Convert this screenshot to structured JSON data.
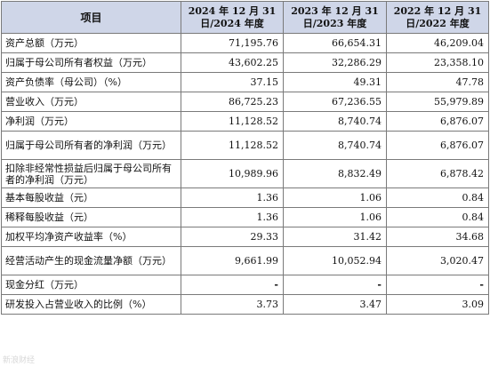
{
  "table": {
    "headers": [
      "项目",
      "2024 年 12 月 31 日/2024 年度",
      "2023 年 12 月 31 日/2023 年度",
      "2022 年 12 月 31 日/2022 年度"
    ],
    "rows": [
      {
        "label": "资产总额（万元）",
        "v2024": "71,195.76",
        "v2023": "66,654.31",
        "v2022": "46,209.04"
      },
      {
        "label": "归属于母公司所有者权益（万元）",
        "v2024": "43,602.25",
        "v2023": "32,286.29",
        "v2022": "23,358.10"
      },
      {
        "label": "资产负债率（母公司）（%）",
        "v2024": "37.15",
        "v2023": "49.31",
        "v2022": "47.78"
      },
      {
        "label": "营业收入（万元）",
        "v2024": "86,725.23",
        "v2023": "67,236.55",
        "v2022": "55,979.89"
      },
      {
        "label": "净利润（万元）",
        "v2024": "11,128.52",
        "v2023": "8,740.74",
        "v2022": "6,876.07"
      },
      {
        "label": "归属于母公司所有者的净利润（万元）",
        "v2024": "11,128.52",
        "v2023": "8,740.74",
        "v2022": "6,876.07"
      },
      {
        "label": "扣除非经常性损益后归属于母公司所有者的净利润（万元）",
        "v2024": "10,989.96",
        "v2023": "8,832.49",
        "v2022": "6,878.42"
      },
      {
        "label": "基本每股收益（元）",
        "v2024": "1.36",
        "v2023": "1.06",
        "v2022": "0.84"
      },
      {
        "label": "稀释每股收益（元）",
        "v2024": "1.36",
        "v2023": "1.06",
        "v2022": "0.84"
      },
      {
        "label": "加权平均净资产收益率（%）",
        "v2024": "29.33",
        "v2023": "31.42",
        "v2022": "34.68"
      },
      {
        "label": "经营活动产生的现金流量净额（万元）",
        "v2024": "9,661.99",
        "v2023": "10,052.94",
        "v2022": "3,020.47"
      },
      {
        "label": "现金分红（万元）",
        "v2024": "-",
        "v2023": "-",
        "v2022": "-"
      },
      {
        "label": "研发投入占营业收入的比例（%）",
        "v2024": "3.73",
        "v2023": "3.47",
        "v2022": "3.09"
      }
    ]
  },
  "watermark": "新浪财经"
}
